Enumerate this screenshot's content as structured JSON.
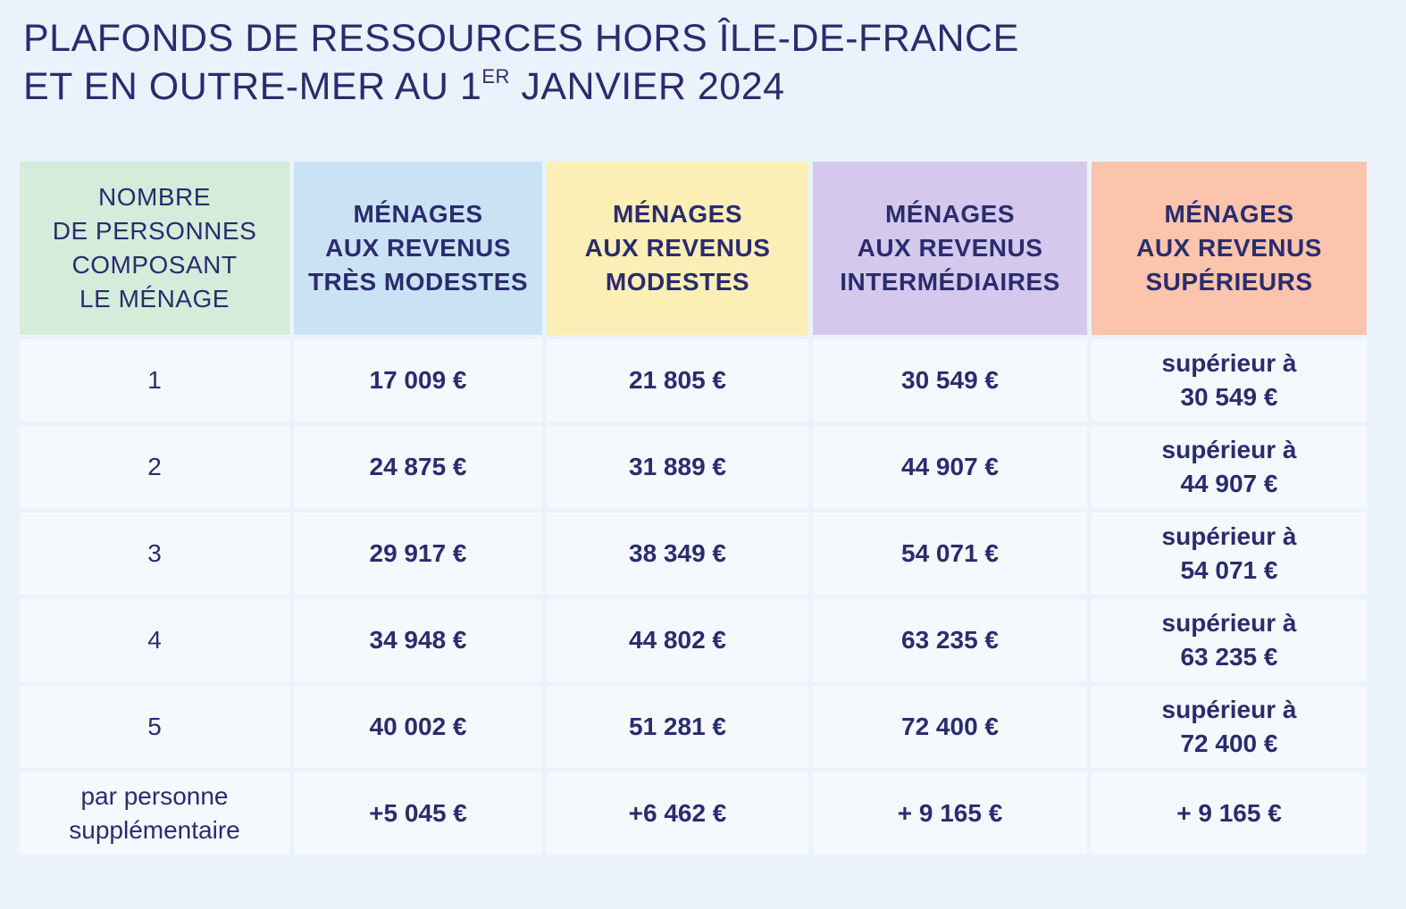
{
  "title": {
    "line1": "PLAFONDS DE RESSOURCES HORS ÎLE-DE-FRANCE",
    "line2_before": "ET EN OUTRE-MER AU 1",
    "line2_sup": "ER",
    "line2_after": " JANVIER 2024"
  },
  "colors": {
    "header_persons": "#d4ecda",
    "header_tres_modestes": "#c9e3f5",
    "header_modestes": "#fcefb6",
    "header_intermediaires": "#d4c9ec",
    "header_superieurs": "#fcc4ad",
    "cell_background": "#f5f9fd",
    "page_background": "#eaf3fb",
    "text": "#2a2c6e"
  },
  "table": {
    "headers": [
      "NOMBRE\nDE PERSONNES\nCOMPOSANT\nLE MÉNAGE",
      "MÉNAGES\nAUX REVENUS\nTRÈS MODESTES",
      "MÉNAGES\nAUX REVENUS\nMODESTES",
      "MÉNAGES\nAUX REVENUS\nINTERMÉDIAIRES",
      "MÉNAGES\nAUX REVENUS\nSUPÉRIEURS"
    ],
    "rows": [
      [
        "1",
        "17 009 €",
        "21 805 €",
        "30 549 €",
        "supérieur à\n30 549 €"
      ],
      [
        "2",
        "24 875 €",
        "31 889 €",
        "44 907 €",
        "supérieur à\n44 907 €"
      ],
      [
        "3",
        "29 917 €",
        "38 349 €",
        "54 071 €",
        "supérieur à\n54 071 €"
      ],
      [
        "4",
        "34 948 €",
        "44 802 €",
        "63 235 €",
        "supérieur à\n63 235 €"
      ],
      [
        "5",
        "40 002 €",
        "51 281 €",
        "72 400 €",
        "supérieur à\n72 400 €"
      ],
      [
        "par personne\nsupplémentaire",
        "+5 045 €",
        "+6 462 €",
        "+ 9 165 €",
        "+ 9 165 €"
      ]
    ]
  }
}
